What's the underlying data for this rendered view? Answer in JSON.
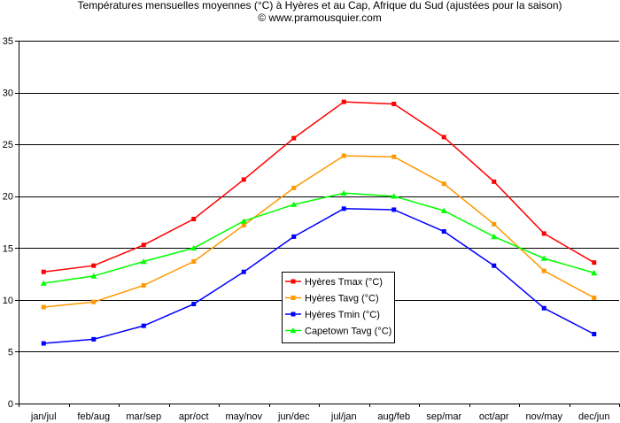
{
  "chart_data": {
    "type": "line",
    "title": "Températures mensuelles moyennes (°C) à Hyères et au Cap, Afrique du Sud (ajustées pour la saison)",
    "subtitle": "© www.pramousquier.com",
    "xlabel": "",
    "ylabel": "",
    "categories": [
      "jan/jul",
      "feb/aug",
      "mar/sep",
      "apr/oct",
      "may/nov",
      "jun/dec",
      "jul/jan",
      "aug/feb",
      "sep/mar",
      "oct/apr",
      "nov/may",
      "dec/jun"
    ],
    "ylim": [
      0,
      35
    ],
    "yticks": [
      0,
      5,
      10,
      15,
      20,
      25,
      30,
      35
    ],
    "grid": "horizontal",
    "legend_position": "center",
    "series": [
      {
        "name": "Hyères  Tmax (°C)",
        "color": "#ff0000",
        "marker": "square",
        "values": [
          12.7,
          13.3,
          15.3,
          17.8,
          21.6,
          25.6,
          29.1,
          28.9,
          25.7,
          21.4,
          16.4,
          13.6
        ]
      },
      {
        "name": "Hyères  Tavg (°C)",
        "color": "#ff9900",
        "marker": "square",
        "values": [
          9.3,
          9.8,
          11.4,
          13.7,
          17.2,
          20.8,
          23.9,
          23.8,
          21.2,
          17.3,
          12.8,
          10.2
        ]
      },
      {
        "name": "Hyères  Tmin (°C)",
        "color": "#0000ff",
        "marker": "square",
        "values": [
          5.8,
          6.2,
          7.5,
          9.6,
          12.7,
          16.1,
          18.8,
          18.7,
          16.6,
          13.3,
          9.2,
          6.7
        ]
      },
      {
        "name": "Capetown Tavg (°C)",
        "color": "#00ff00",
        "marker": "triangle",
        "values": [
          11.6,
          12.3,
          13.7,
          15.0,
          17.6,
          19.2,
          20.3,
          20.0,
          18.6,
          16.1,
          14.0,
          12.6
        ]
      }
    ]
  }
}
